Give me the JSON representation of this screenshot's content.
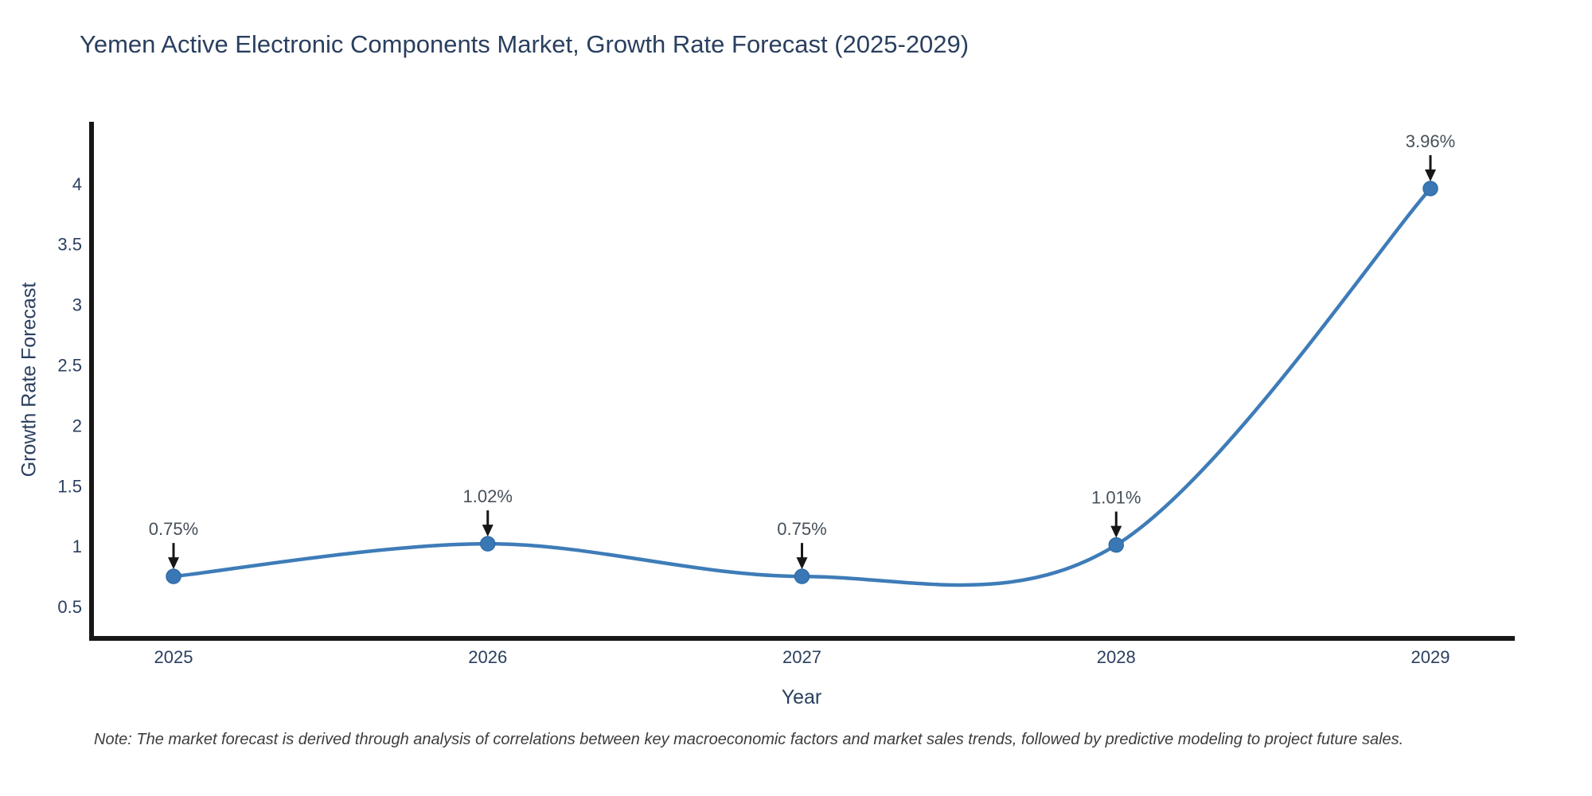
{
  "note": "Note: The market forecast is derived through analysis of correlations between key macroeconomic factors and market sales trends, followed by predictive modeling to project future sales.",
  "chart_data": {
    "type": "line",
    "title": "Yemen Active Electronic Components Market, Growth Rate Forecast (2025-2029)",
    "xlabel": "Year",
    "ylabel": "Growth Rate Forecast",
    "categories": [
      "2025",
      "2026",
      "2027",
      "2028",
      "2029"
    ],
    "series": [
      {
        "name": "Growth Rate Forecast",
        "values": [
          0.75,
          1.02,
          0.75,
          1.01,
          3.96
        ]
      }
    ],
    "point_labels": [
      "0.75%",
      "1.02%",
      "0.75%",
      "1.01%",
      "3.96%"
    ],
    "line_shape": "spline",
    "markers": true,
    "grid": false,
    "legend": false,
    "yticks": [
      0.5,
      1,
      1.5,
      2,
      2.5,
      3,
      3.5,
      4
    ],
    "ytick_labels": [
      "0.5",
      "1",
      "1.5",
      "2",
      "2.5",
      "3",
      "3.5",
      "4"
    ],
    "ylim": [
      0.237,
      4.493
    ],
    "annotations_have_arrows": true
  },
  "colors": {
    "background": "#ffffff",
    "line": "#3e7cb8",
    "marker_fill": "#3a78b5",
    "marker_edge": "#2f6da8",
    "axis": "#171717",
    "title_text": "#2a3f5f",
    "tick_text": "#2a3f5f",
    "annotation_text": "#46505a",
    "arrow": "#171717",
    "note_text": "#3d3d3d"
  }
}
